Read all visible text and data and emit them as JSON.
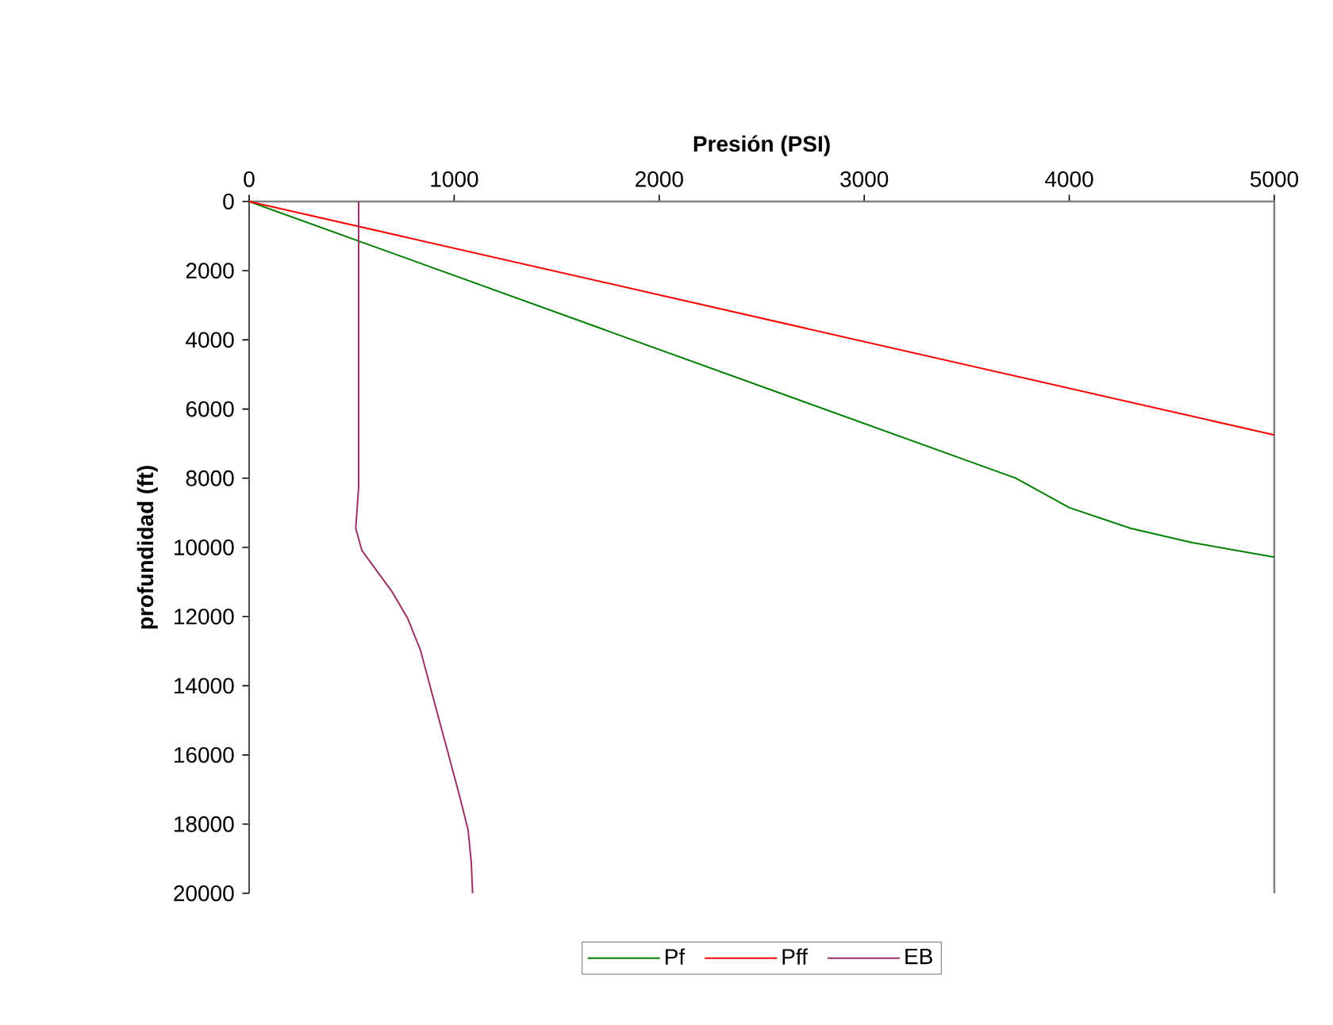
{
  "chart_data": {
    "type": "line",
    "xlabel": "Presión (PSI)",
    "ylabel": "profundidad (ft)",
    "xlim": [
      0,
      5000
    ],
    "ylim": [
      20000,
      0
    ],
    "xticks": [
      0,
      1000,
      2000,
      3000,
      4000,
      5000
    ],
    "yticks": [
      0,
      2000,
      4000,
      6000,
      8000,
      10000,
      12000,
      14000,
      16000,
      18000,
      20000
    ],
    "legend": "bottom",
    "grid": false,
    "series": [
      {
        "name": "Pf",
        "color": "#008000",
        "x": [
          0,
          3740,
          4000,
          4300,
          4600,
          5000
        ],
        "values": [
          0,
          8000,
          8850,
          9450,
          9860,
          10280
        ]
      },
      {
        "name": "Pff",
        "color": "#ff0000",
        "x": [
          0,
          5000
        ],
        "values": [
          0,
          6750
        ]
      },
      {
        "name": "EB",
        "color": "#993366",
        "x": [
          534,
          534,
          520,
          550,
          697,
          774,
          836,
          898,
          967,
          1029,
          1068,
          1083,
          1090
        ],
        "values": [
          0,
          8250,
          9450,
          10090,
          11280,
          12060,
          12980,
          14360,
          15870,
          17250,
          18170,
          19080,
          20000
        ]
      }
    ]
  }
}
